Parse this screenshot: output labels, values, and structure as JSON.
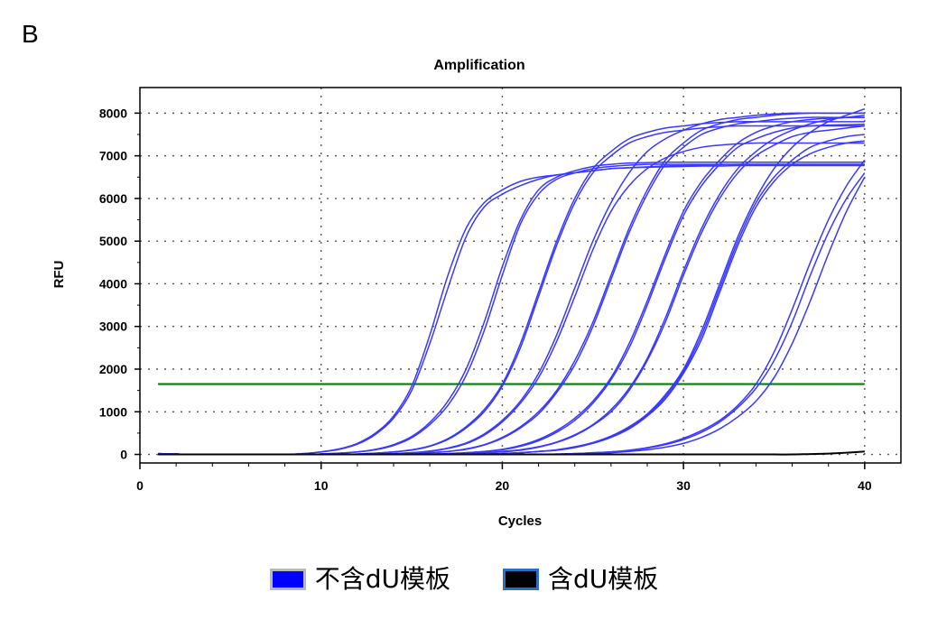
{
  "panel_letter": "B",
  "legend": {
    "items": [
      {
        "label": "不含dU模板",
        "fill": "#0000ff",
        "border": "#b8b8b8"
      },
      {
        "label": "含dU模板",
        "fill": "#000000",
        "border": "#2b6cc4"
      }
    ]
  },
  "colors": {
    "plot_border": "#000000",
    "grid": "#555555",
    "threshold": "#008000",
    "curve_no_du": "#3838ff",
    "curve_du": "#000000"
  },
  "chart_data": {
    "type": "line",
    "title": "Amplification",
    "xlabel": "Cycles",
    "ylabel": "RFU",
    "xlim": [
      0,
      42
    ],
    "ylim": [
      -200,
      8600
    ],
    "xticks": [
      0,
      10,
      20,
      30,
      40
    ],
    "yticks": [
      0,
      1000,
      2000,
      3000,
      4000,
      5000,
      6000,
      7000,
      8000
    ],
    "grid": true,
    "threshold": 1650,
    "x": [
      1,
      2,
      3,
      4,
      5,
      6,
      7,
      8,
      9,
      10,
      11,
      12,
      13,
      14,
      15,
      16,
      17,
      18,
      19,
      20,
      21,
      22,
      23,
      24,
      25,
      26,
      27,
      28,
      29,
      30,
      31,
      32,
      33,
      34,
      35,
      36,
      37,
      38,
      39,
      40
    ],
    "series": [
      {
        "group": "no-dU",
        "values": [
          20,
          10,
          0,
          0,
          0,
          0,
          0,
          0,
          20,
          60,
          130,
          260,
          500,
          900,
          1600,
          2800,
          4200,
          5300,
          5900,
          6200,
          6400,
          6500,
          6550,
          6600,
          6650,
          6700,
          6720,
          6740,
          6760,
          6770,
          6780,
          6790,
          6800,
          6800,
          6800,
          6800,
          6800,
          6800,
          6800,
          6800
        ]
      },
      {
        "group": "no-dU",
        "values": [
          20,
          10,
          0,
          0,
          0,
          0,
          0,
          0,
          20,
          60,
          120,
          240,
          470,
          850,
          1500,
          2600,
          3900,
          5100,
          5800,
          6100,
          6300,
          6450,
          6550,
          6600,
          6650,
          6700,
          6720,
          6730,
          6740,
          6750,
          6760,
          6760,
          6770,
          6770,
          6770,
          6770,
          6770,
          6770,
          6770,
          6770
        ]
      },
      {
        "group": "no-dU",
        "values": [
          20,
          10,
          0,
          0,
          0,
          0,
          0,
          0,
          0,
          10,
          30,
          60,
          120,
          230,
          420,
          750,
          1250,
          2000,
          3100,
          4400,
          5500,
          6200,
          6500,
          6650,
          6750,
          6800,
          6830,
          6840,
          6850,
          6850,
          6850,
          6850,
          6850,
          6850,
          6850,
          6850,
          6850,
          6850,
          6850,
          6850
        ]
      },
      {
        "group": "no-dU",
        "values": [
          20,
          10,
          0,
          0,
          0,
          0,
          0,
          0,
          0,
          10,
          30,
          60,
          110,
          210,
          390,
          700,
          1150,
          1850,
          2900,
          4200,
          5400,
          6100,
          6450,
          6600,
          6700,
          6750,
          6780,
          6800,
          6800,
          6800,
          6800,
          6800,
          6800,
          6800,
          6800,
          6800,
          6800,
          6800,
          6800,
          6800
        ]
      },
      {
        "group": "no-dU",
        "values": [
          10,
          10,
          0,
          0,
          0,
          0,
          0,
          0,
          0,
          0,
          0,
          10,
          30,
          60,
          110,
          200,
          370,
          650,
          1050,
          1650,
          2600,
          3800,
          5000,
          6000,
          6700,
          7100,
          7400,
          7550,
          7650,
          7700,
          7750,
          7780,
          7800,
          7800,
          7800,
          7800,
          7800,
          7800,
          7800,
          7800
        ]
      },
      {
        "group": "no-dU",
        "values": [
          10,
          10,
          0,
          0,
          0,
          0,
          0,
          0,
          0,
          0,
          0,
          10,
          30,
          60,
          100,
          190,
          350,
          620,
          1000,
          1600,
          2500,
          3700,
          4900,
          5900,
          6600,
          7000,
          7300,
          7450,
          7550,
          7600,
          7650,
          7680,
          7700,
          7700,
          7700,
          7700,
          7700,
          7700,
          7700,
          7700
        ]
      },
      {
        "group": "no-dU",
        "values": [
          10,
          10,
          0,
          0,
          0,
          0,
          0,
          0,
          0,
          0,
          0,
          0,
          10,
          20,
          40,
          80,
          150,
          270,
          480,
          800,
          1250,
          1900,
          2800,
          3900,
          5000,
          5900,
          6600,
          7100,
          7400,
          7600,
          7750,
          7850,
          7900,
          7950,
          7980,
          8000,
          8000,
          8000,
          8000,
          8000
        ]
      },
      {
        "group": "no-dU",
        "values": [
          10,
          10,
          0,
          0,
          0,
          0,
          0,
          0,
          0,
          0,
          0,
          0,
          10,
          20,
          40,
          70,
          140,
          250,
          450,
          760,
          1200,
          1800,
          2650,
          3700,
          4800,
          5700,
          6300,
          6700,
          6950,
          7100,
          7200,
          7250,
          7280,
          7300,
          7300,
          7300,
          7300,
          7300,
          7300,
          7300
        ]
      },
      {
        "group": "no-dU",
        "values": [
          10,
          10,
          0,
          0,
          0,
          0,
          0,
          0,
          0,
          0,
          0,
          0,
          0,
          10,
          20,
          40,
          70,
          130,
          230,
          400,
          650,
          1000,
          1500,
          2200,
          3100,
          4200,
          5300,
          6200,
          6900,
          7300,
          7600,
          7750,
          7850,
          7900,
          7950,
          7980,
          8000,
          8000,
          8000,
          8000
        ]
      },
      {
        "group": "no-dU",
        "values": [
          10,
          10,
          0,
          0,
          0,
          0,
          0,
          0,
          0,
          0,
          0,
          0,
          0,
          10,
          20,
          40,
          70,
          120,
          220,
          380,
          620,
          950,
          1450,
          2100,
          3000,
          4100,
          5200,
          6100,
          6800,
          7200,
          7500,
          7650,
          7750,
          7800,
          7850,
          7880,
          7900,
          7900,
          7900,
          7900
        ]
      },
      {
        "group": "no-dU",
        "values": [
          10,
          10,
          0,
          0,
          0,
          0,
          0,
          0,
          0,
          0,
          0,
          0,
          0,
          0,
          0,
          10,
          20,
          40,
          70,
          120,
          210,
          350,
          560,
          850,
          1250,
          1800,
          2600,
          3600,
          4700,
          5700,
          6400,
          6900,
          7300,
          7550,
          7700,
          7800,
          7850,
          7880,
          7900,
          7900
        ]
      },
      {
        "group": "no-dU",
        "values": [
          10,
          10,
          0,
          0,
          0,
          0,
          0,
          0,
          0,
          0,
          0,
          0,
          0,
          0,
          0,
          10,
          20,
          40,
          70,
          110,
          190,
          320,
          520,
          800,
          1200,
          1750,
          2500,
          3500,
          4600,
          5600,
          6300,
          6800,
          7200,
          7400,
          7550,
          7650,
          7700,
          7720,
          7730,
          7740
        ]
      },
      {
        "group": "no-dU",
        "values": [
          10,
          10,
          0,
          0,
          0,
          0,
          0,
          0,
          0,
          0,
          0,
          0,
          0,
          0,
          0,
          0,
          10,
          20,
          40,
          70,
          110,
          180,
          290,
          460,
          700,
          1050,
          1550,
          2250,
          3200,
          4300,
          5300,
          6100,
          6700,
          7100,
          7400,
          7600,
          7750,
          7850,
          7900,
          7950
        ]
      },
      {
        "group": "no-dU",
        "values": [
          10,
          10,
          0,
          0,
          0,
          0,
          0,
          0,
          0,
          0,
          0,
          0,
          0,
          0,
          0,
          0,
          10,
          20,
          40,
          60,
          100,
          170,
          280,
          440,
          680,
          1000,
          1500,
          2200,
          3100,
          4200,
          5200,
          6000,
          6600,
          7000,
          7250,
          7450,
          7550,
          7600,
          7650,
          7700
        ]
      },
      {
        "group": "no-dU",
        "values": [
          10,
          10,
          0,
          0,
          0,
          0,
          0,
          0,
          0,
          0,
          0,
          0,
          0,
          0,
          0,
          0,
          0,
          0,
          10,
          20,
          40,
          70,
          110,
          180,
          280,
          430,
          650,
          950,
          1400,
          2000,
          2900,
          4000,
          5100,
          6000,
          6700,
          7200,
          7550,
          7800,
          7950,
          8100
        ]
      },
      {
        "group": "no-dU",
        "values": [
          10,
          10,
          0,
          0,
          0,
          0,
          0,
          0,
          0,
          0,
          0,
          0,
          0,
          0,
          0,
          0,
          0,
          0,
          10,
          20,
          40,
          70,
          100,
          170,
          270,
          410,
          620,
          920,
          1350,
          1950,
          2800,
          3900,
          5000,
          5900,
          6500,
          6900,
          7200,
          7350,
          7450,
          7500
        ]
      },
      {
        "group": "no-dU",
        "values": [
          10,
          10,
          0,
          0,
          0,
          0,
          0,
          0,
          0,
          0,
          0,
          0,
          0,
          0,
          0,
          0,
          0,
          0,
          10,
          20,
          40,
          70,
          100,
          160,
          260,
          400,
          600,
          900,
          1300,
          1900,
          2700,
          3800,
          4900,
          5800,
          6400,
          6800,
          7050,
          7200,
          7300,
          7350
        ]
      },
      {
        "group": "no-dU",
        "values": [
          10,
          10,
          0,
          0,
          0,
          0,
          0,
          0,
          0,
          0,
          0,
          0,
          0,
          0,
          0,
          0,
          0,
          0,
          0,
          0,
          0,
          0,
          10,
          20,
          40,
          60,
          100,
          160,
          250,
          380,
          560,
          800,
          1150,
          1650,
          2400,
          3400,
          4500,
          5500,
          6300,
          6900
        ]
      },
      {
        "group": "no-dU",
        "values": [
          10,
          10,
          0,
          0,
          0,
          0,
          0,
          0,
          0,
          0,
          0,
          0,
          0,
          0,
          0,
          0,
          0,
          0,
          0,
          0,
          0,
          0,
          10,
          20,
          40,
          60,
          90,
          150,
          230,
          350,
          520,
          760,
          1100,
          1550,
          2200,
          3100,
          4200,
          5200,
          6000,
          6600
        ]
      },
      {
        "group": "no-dU",
        "values": [
          10,
          10,
          0,
          0,
          0,
          0,
          0,
          0,
          0,
          0,
          0,
          0,
          0,
          0,
          0,
          0,
          0,
          0,
          0,
          0,
          0,
          0,
          0,
          10,
          20,
          40,
          70,
          110,
          170,
          260,
          400,
          600,
          880,
          1250,
          1800,
          2600,
          3600,
          4700,
          5700,
          6500
        ]
      },
      {
        "group": "dU",
        "values": [
          0,
          0,
          0,
          0,
          0,
          0,
          0,
          0,
          0,
          0,
          0,
          0,
          0,
          0,
          0,
          0,
          0,
          0,
          0,
          0,
          0,
          0,
          0,
          0,
          0,
          0,
          0,
          0,
          0,
          0,
          0,
          0,
          0,
          0,
          0,
          0,
          10,
          20,
          40,
          70
        ]
      }
    ]
  }
}
